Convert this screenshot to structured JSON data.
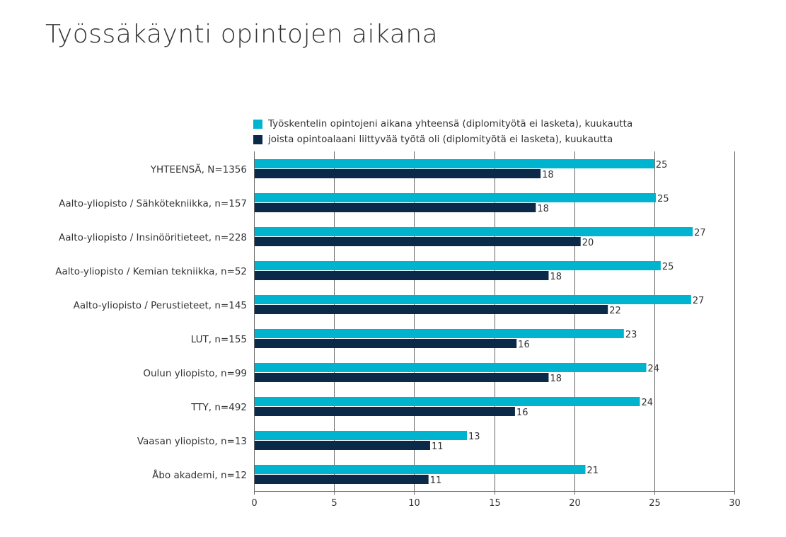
{
  "title": "Työssäkäynti opintojen aikana",
  "colors": {
    "series1": "#00b4d0",
    "series2": "#0b2a4a",
    "grid": "#666666"
  },
  "chart_data": {
    "type": "bar",
    "orientation": "horizontal",
    "categories": [
      "YHTEENSÄ, N=1356",
      "Aalto-yliopisto / Sähkötekniikka, n=157",
      "Aalto-yliopisto / Insinööritieteet, n=228",
      "Aalto-yliopisto / Kemian tekniikka, n=52",
      "Aalto-yliopisto / Perustieteet, n=145",
      "LUT, n=155",
      "Oulun yliopisto, n=99",
      "TTY, n=492",
      "Vaasan yliopisto, n=13",
      "Åbo akademi, n=12"
    ],
    "series": [
      {
        "name": "Työskentelin opintojeni aikana yhteensä (diplomityötä ei lasketa), kuukautta",
        "color": "#00b4d0",
        "values": [
          25.0,
          25.1,
          27.4,
          25.4,
          27.3,
          23.1,
          24.5,
          24.1,
          13.3,
          20.7
        ],
        "labels": [
          "25",
          "25",
          "27",
          "25",
          "27",
          "23",
          "24",
          "24",
          "13",
          "21"
        ]
      },
      {
        "name": "joista opintoalaani liittyvää työtä oli (diplomityötä ei lasketa), kuukautta",
        "color": "#0b2a4a",
        "values": [
          17.9,
          17.6,
          20.4,
          18.4,
          22.1,
          16.4,
          18.4,
          16.3,
          11.0,
          10.9
        ],
        "labels": [
          "18",
          "18",
          "20",
          "18",
          "22",
          "16",
          "18",
          "16",
          "11",
          "11"
        ]
      }
    ],
    "xlim": [
      0,
      30
    ],
    "xticks": [
      0,
      5,
      10,
      15,
      20,
      25,
      30
    ],
    "grid": "vertical",
    "legend_position": "top"
  }
}
